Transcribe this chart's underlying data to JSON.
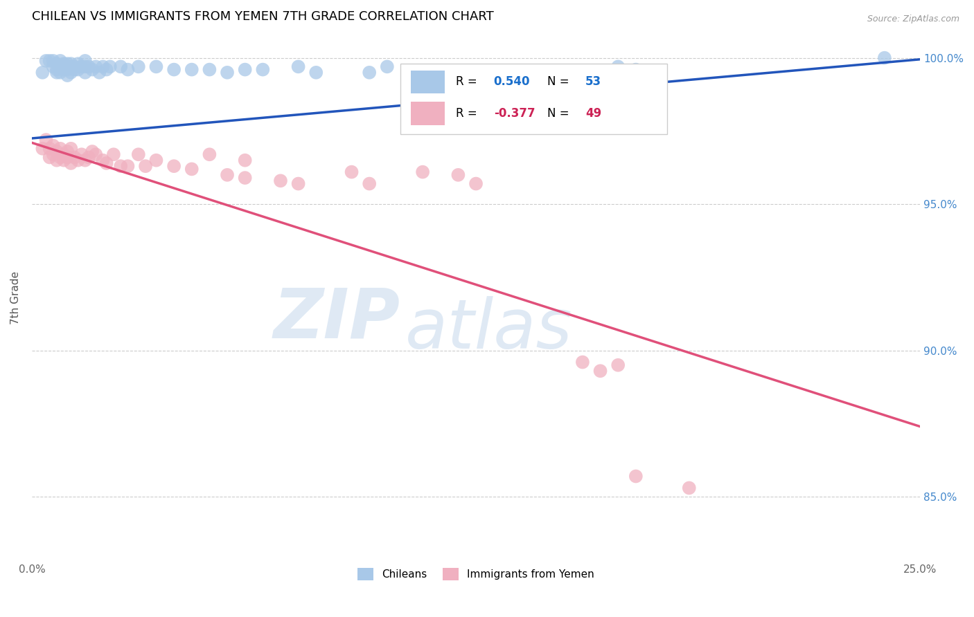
{
  "title": "CHILEAN VS IMMIGRANTS FROM YEMEN 7TH GRADE CORRELATION CHART",
  "source": "Source: ZipAtlas.com",
  "ylabel": "7th Grade",
  "xmin": 0.0,
  "xmax": 0.25,
  "ymin": 0.828,
  "ymax": 1.008,
  "r_chilean": 0.54,
  "n_chilean": 53,
  "r_yemen": -0.377,
  "n_yemen": 49,
  "chilean_color": "#a8c8e8",
  "yemen_color": "#f0b0c0",
  "trendline_chilean_color": "#2255bb",
  "trendline_yemen_color": "#e0507a",
  "legend_label_chilean": "Chileans",
  "legend_label_yemen": "Immigrants from Yemen",
  "watermark_zip": "ZIP",
  "watermark_atlas": "atlas",
  "ytick_vals": [
    0.85,
    0.9,
    0.95,
    1.0
  ],
  "ytick_labels": [
    "85.0%",
    "90.0%",
    "95.0%",
    "100.0%"
  ],
  "xtick_vals": [
    0.0,
    0.05,
    0.1,
    0.15,
    0.2,
    0.25
  ],
  "xtick_labels": [
    "0.0%",
    "",
    "",
    "",
    "",
    "25.0%"
  ],
  "chilean_scatter": [
    [
      0.003,
      0.995
    ],
    [
      0.004,
      0.999
    ],
    [
      0.005,
      0.999
    ],
    [
      0.006,
      0.999
    ],
    [
      0.006,
      0.997
    ],
    [
      0.007,
      0.998
    ],
    [
      0.007,
      0.996
    ],
    [
      0.007,
      0.995
    ],
    [
      0.008,
      0.999
    ],
    [
      0.008,
      0.997
    ],
    [
      0.008,
      0.995
    ],
    [
      0.009,
      0.998
    ],
    [
      0.009,
      0.997
    ],
    [
      0.009,
      0.996
    ],
    [
      0.01,
      0.998
    ],
    [
      0.01,
      0.996
    ],
    [
      0.01,
      0.994
    ],
    [
      0.011,
      0.998
    ],
    [
      0.011,
      0.997
    ],
    [
      0.011,
      0.995
    ],
    [
      0.012,
      0.997
    ],
    [
      0.012,
      0.996
    ],
    [
      0.013,
      0.998
    ],
    [
      0.013,
      0.996
    ],
    [
      0.014,
      0.997
    ],
    [
      0.015,
      0.999
    ],
    [
      0.015,
      0.997
    ],
    [
      0.015,
      0.995
    ],
    [
      0.016,
      0.997
    ],
    [
      0.017,
      0.996
    ],
    [
      0.018,
      0.997
    ],
    [
      0.019,
      0.995
    ],
    [
      0.02,
      0.997
    ],
    [
      0.021,
      0.996
    ],
    [
      0.022,
      0.997
    ],
    [
      0.025,
      0.997
    ],
    [
      0.027,
      0.996
    ],
    [
      0.03,
      0.997
    ],
    [
      0.035,
      0.997
    ],
    [
      0.04,
      0.996
    ],
    [
      0.045,
      0.996
    ],
    [
      0.05,
      0.996
    ],
    [
      0.055,
      0.995
    ],
    [
      0.06,
      0.996
    ],
    [
      0.065,
      0.996
    ],
    [
      0.075,
      0.997
    ],
    [
      0.08,
      0.995
    ],
    [
      0.095,
      0.995
    ],
    [
      0.1,
      0.997
    ],
    [
      0.13,
      0.993
    ],
    [
      0.165,
      0.997
    ],
    [
      0.17,
      0.996
    ],
    [
      0.24,
      1.0
    ]
  ],
  "yemen_scatter": [
    [
      0.003,
      0.969
    ],
    [
      0.004,
      0.972
    ],
    [
      0.005,
      0.969
    ],
    [
      0.005,
      0.966
    ],
    [
      0.006,
      0.97
    ],
    [
      0.006,
      0.967
    ],
    [
      0.007,
      0.968
    ],
    [
      0.007,
      0.965
    ],
    [
      0.008,
      0.969
    ],
    [
      0.008,
      0.966
    ],
    [
      0.009,
      0.967
    ],
    [
      0.009,
      0.965
    ],
    [
      0.01,
      0.968
    ],
    [
      0.01,
      0.966
    ],
    [
      0.011,
      0.969
    ],
    [
      0.011,
      0.964
    ],
    [
      0.012,
      0.966
    ],
    [
      0.013,
      0.965
    ],
    [
      0.014,
      0.967
    ],
    [
      0.015,
      0.965
    ],
    [
      0.016,
      0.966
    ],
    [
      0.017,
      0.968
    ],
    [
      0.018,
      0.967
    ],
    [
      0.02,
      0.965
    ],
    [
      0.021,
      0.964
    ],
    [
      0.023,
      0.967
    ],
    [
      0.025,
      0.963
    ],
    [
      0.027,
      0.963
    ],
    [
      0.03,
      0.967
    ],
    [
      0.032,
      0.963
    ],
    [
      0.035,
      0.965
    ],
    [
      0.04,
      0.963
    ],
    [
      0.045,
      0.962
    ],
    [
      0.05,
      0.967
    ],
    [
      0.055,
      0.96
    ],
    [
      0.06,
      0.965
    ],
    [
      0.06,
      0.959
    ],
    [
      0.07,
      0.958
    ],
    [
      0.075,
      0.957
    ],
    [
      0.09,
      0.961
    ],
    [
      0.095,
      0.957
    ],
    [
      0.11,
      0.961
    ],
    [
      0.12,
      0.96
    ],
    [
      0.125,
      0.957
    ],
    [
      0.155,
      0.896
    ],
    [
      0.16,
      0.893
    ],
    [
      0.165,
      0.895
    ],
    [
      0.17,
      0.857
    ],
    [
      0.185,
      0.853
    ]
  ],
  "chilean_trend_x": [
    0.0,
    0.25
  ],
  "chilean_trend_y": [
    0.9725,
    0.9995
  ],
  "yemen_trend_x": [
    0.0,
    0.25
  ],
  "yemen_trend_y": [
    0.971,
    0.874
  ]
}
